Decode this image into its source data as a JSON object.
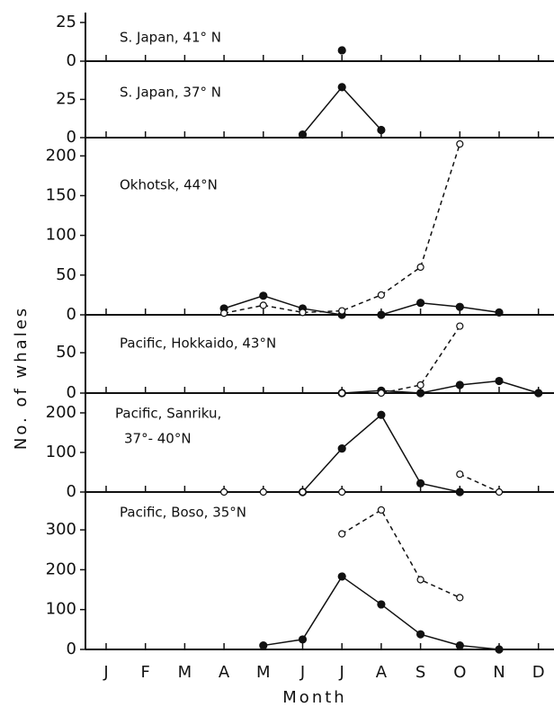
{
  "chart_data": {
    "type": "line",
    "categories": [
      "J",
      "F",
      "M",
      "A",
      "M",
      "J",
      "J",
      "A",
      "S",
      "O",
      "N",
      "D"
    ],
    "xlabel": "Month",
    "ylabel": "No. of whales",
    "panels": [
      {
        "title": [
          "S. Japan, 41° N"
        ],
        "ylim": [
          0,
          25
        ],
        "yticks": [
          0,
          25
        ],
        "series": [
          {
            "color": "#111111",
            "style": "solid",
            "marker": "filled",
            "values": [
              null,
              null,
              null,
              null,
              null,
              null,
              7,
              null,
              null,
              null,
              null,
              null
            ]
          }
        ]
      },
      {
        "title": [
          "S. Japan, 37° N"
        ],
        "ylim": [
          0,
          50
        ],
        "yticks": [
          0,
          25
        ],
        "series": [
          {
            "color": "#111111",
            "style": "solid",
            "marker": "filled",
            "values": [
              null,
              null,
              null,
              null,
              null,
              2,
              33,
              5,
              null,
              null,
              null,
              null
            ]
          }
        ]
      },
      {
        "title": [
          "Okhotsk, 44°N"
        ],
        "ylim": [
          0,
          223
        ],
        "yticks": [
          0,
          50,
          100,
          150,
          200
        ],
        "series": [
          {
            "color": "#111111",
            "style": "solid",
            "marker": "filled",
            "values": [
              null,
              null,
              null,
              8,
              24,
              8,
              0,
              0,
              15,
              10,
              3,
              null
            ]
          },
          {
            "color": "#111111",
            "style": "dashed",
            "marker": "open",
            "values": [
              null,
              null,
              null,
              2,
              12,
              3,
              5,
              25,
              60,
              215,
              null,
              null
            ]
          }
        ]
      },
      {
        "title": [
          "Pacific, Hokkaido, 43°N"
        ],
        "ylim": [
          0,
          97
        ],
        "yticks": [
          0,
          50
        ],
        "series": [
          {
            "color": "#111111",
            "style": "solid",
            "marker": "filled",
            "values": [
              null,
              null,
              null,
              null,
              null,
              null,
              0,
              3,
              0,
              10,
              15,
              0
            ]
          },
          {
            "color": "#111111",
            "style": "dashed",
            "marker": "open",
            "values": [
              null,
              null,
              null,
              null,
              null,
              null,
              0,
              0,
              10,
              83,
              null,
              null
            ]
          }
        ]
      },
      {
        "title": [
          "Pacific, Sanriku,",
          "37°- 40°N"
        ],
        "ylim": [
          0,
          250
        ],
        "yticks": [
          0,
          100,
          200
        ],
        "series": [
          {
            "color": "#111111",
            "style": "solid",
            "marker": "filled",
            "values": [
              null,
              null,
              null,
              null,
              null,
              0,
              110,
              195,
              22,
              0,
              null,
              null
            ]
          },
          {
            "color": "#111111",
            "style": "dashed",
            "marker": "open",
            "values": [
              null,
              null,
              null,
              0,
              0,
              0,
              0,
              null,
              null,
              45,
              0,
              null
            ]
          }
        ]
      },
      {
        "title": [
          "Pacific, Boso, 35°N"
        ],
        "ylim": [
          0,
          395
        ],
        "yticks": [
          0,
          100,
          200,
          300
        ],
        "series": [
          {
            "color": "#111111",
            "style": "solid",
            "marker": "filled",
            "values": [
              null,
              null,
              null,
              null,
              10,
              25,
              183,
              113,
              38,
              10,
              0,
              null
            ]
          },
          {
            "color": "#111111",
            "style": "dashed",
            "marker": "open",
            "values": [
              null,
              null,
              null,
              null,
              null,
              null,
              290,
              350,
              175,
              130,
              null,
              null
            ]
          }
        ]
      }
    ]
  }
}
